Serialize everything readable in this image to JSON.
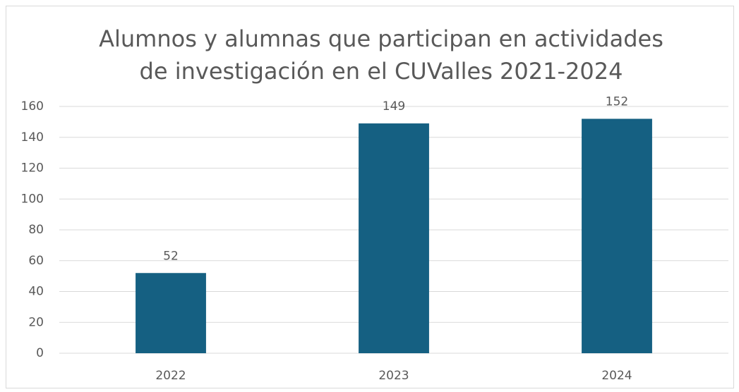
{
  "chart_data": {
    "type": "bar",
    "title": "Alumnos y alumnas que participan en actividades de investigación en el CUValles 2021-2024",
    "categories": [
      "2022",
      "2023",
      "2024"
    ],
    "values": [
      52,
      149,
      152
    ],
    "color": "#156082",
    "ylim": [
      0,
      160
    ],
    "yticks": [
      0,
      20,
      40,
      60,
      80,
      100,
      120,
      140,
      160
    ],
    "grid": true
  }
}
